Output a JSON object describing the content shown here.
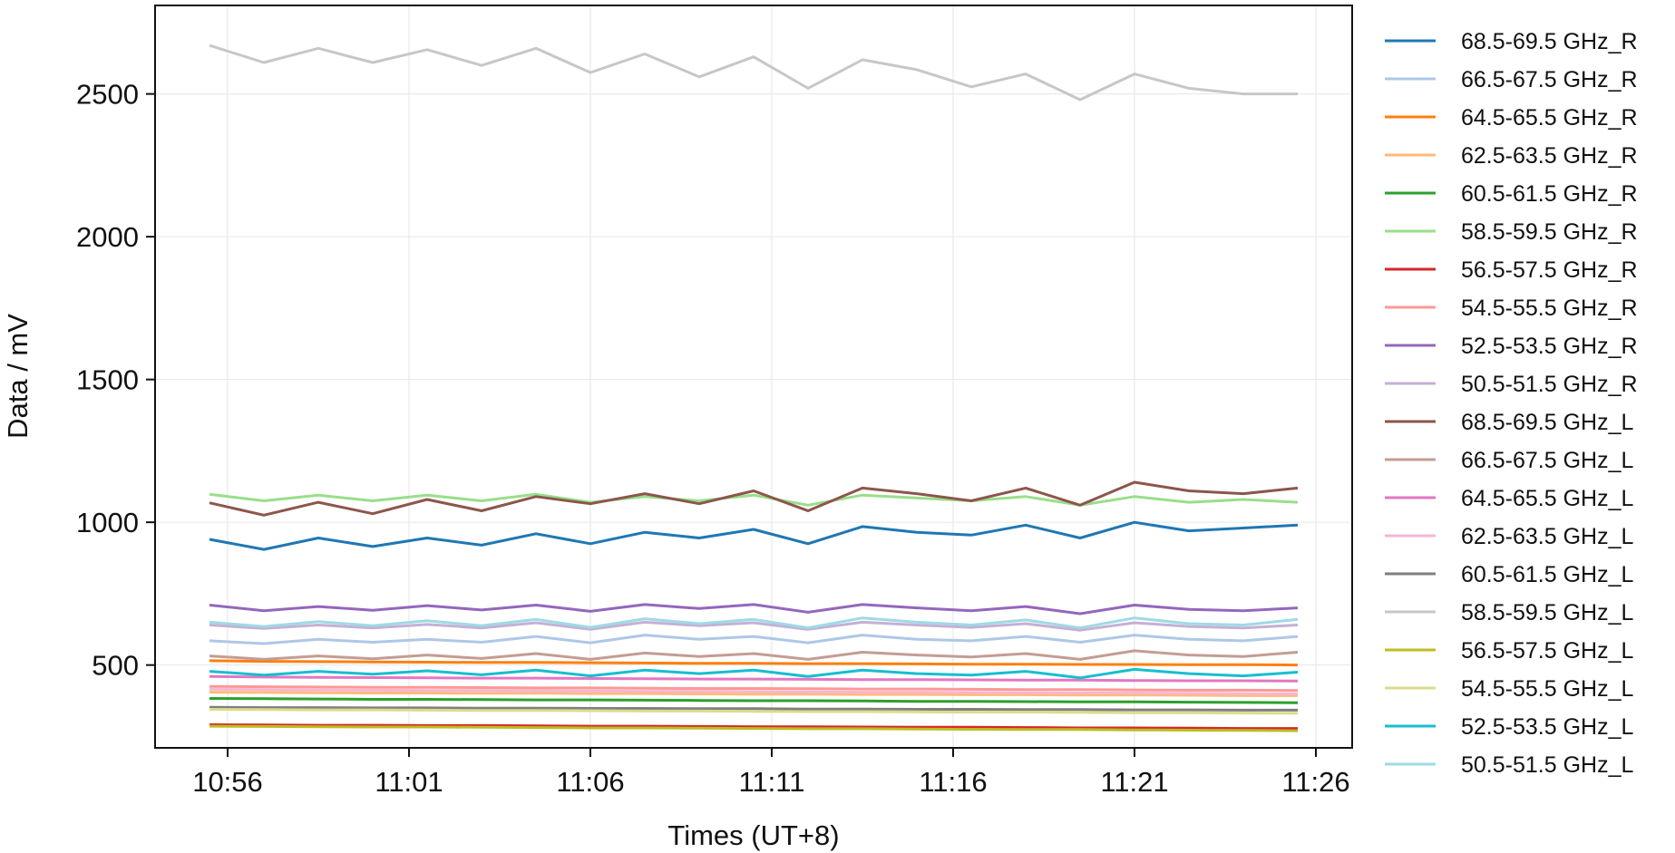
{
  "chart_data": {
    "type": "line",
    "xlabel": "Times (UT+8)",
    "ylabel": "Data / mV",
    "xticks": [
      "10:56",
      "11:01",
      "11:06",
      "11:11",
      "11:16",
      "11:21",
      "11:26"
    ],
    "yticks": [
      "500",
      "1000",
      "1500",
      "2000",
      "2500"
    ],
    "xlim": [
      "10:54",
      "11:27"
    ],
    "ylim": [
      210,
      2810
    ],
    "grid": true,
    "legend_position": "right-outside",
    "x": [
      "10:55:30",
      "10:57:00",
      "10:58:30",
      "11:00:00",
      "11:01:30",
      "11:03:00",
      "11:04:30",
      "11:06:00",
      "11:07:30",
      "11:09:00",
      "11:10:30",
      "11:12:00",
      "11:13:30",
      "11:15:00",
      "11:16:30",
      "11:18:00",
      "11:19:30",
      "11:21:00",
      "11:22:30",
      "11:24:00",
      "11:25:30"
    ],
    "series": [
      {
        "name": "68.5-69.5 GHz_R",
        "color": "#1f77b4",
        "values": [
          940,
          905,
          945,
          915,
          945,
          920,
          960,
          925,
          965,
          945,
          975,
          925,
          985,
          965,
          955,
          990,
          945,
          1000,
          970,
          980,
          990
        ]
      },
      {
        "name": "66.5-67.5 GHz_R",
        "color": "#aec7e8",
        "values": [
          585,
          575,
          590,
          580,
          590,
          580,
          600,
          578,
          605,
          590,
          600,
          578,
          605,
          590,
          585,
          600,
          580,
          605,
          590,
          585,
          600
        ]
      },
      {
        "name": "64.5-65.5 GHz_R",
        "color": "#ff7f0e",
        "values": [
          515,
          513,
          512,
          511,
          510,
          509,
          509,
          508,
          507,
          506,
          506,
          505,
          505,
          504,
          503,
          503,
          502,
          502,
          501,
          501,
          500
        ]
      },
      {
        "name": "62.5-63.5 GHz_R",
        "color": "#ffbb78",
        "values": [
          405,
          404,
          403,
          402,
          402,
          401,
          401,
          400,
          400,
          399,
          398,
          398,
          397,
          397,
          396,
          396,
          395,
          395,
          394,
          393,
          393
        ]
      },
      {
        "name": "60.5-61.5 GHz_R",
        "color": "#2ca02c",
        "values": [
          383,
          382,
          381,
          380,
          380,
          379,
          378,
          378,
          377,
          376,
          375,
          375,
          374,
          373,
          373,
          372,
          371,
          371,
          370,
          369,
          368
        ]
      },
      {
        "name": "58.5-59.5 GHz_R",
        "color": "#98df8a",
        "values": [
          1098,
          1075,
          1095,
          1075,
          1095,
          1075,
          1098,
          1070,
          1090,
          1075,
          1095,
          1060,
          1095,
          1085,
          1075,
          1090,
          1060,
          1090,
          1070,
          1080,
          1070
        ]
      },
      {
        "name": "56.5-57.5 GHz_R",
        "color": "#d62728",
        "values": [
          291,
          290,
          289,
          289,
          288,
          288,
          287,
          286,
          286,
          285,
          284,
          284,
          283,
          282,
          282,
          281,
          280,
          280,
          279,
          278,
          278
        ]
      },
      {
        "name": "54.5-55.5 GHz_R",
        "color": "#ff9896",
        "values": [
          425,
          424,
          423,
          422,
          422,
          421,
          420,
          420,
          419,
          418,
          418,
          417,
          416,
          416,
          415,
          414,
          414,
          413,
          412,
          412,
          411
        ]
      },
      {
        "name": "52.5-53.5 GHz_R",
        "color": "#9467bd",
        "values": [
          710,
          690,
          705,
          692,
          708,
          693,
          710,
          688,
          712,
          698,
          712,
          685,
          712,
          700,
          690,
          705,
          680,
          710,
          695,
          690,
          700
        ]
      },
      {
        "name": "50.5-51.5 GHz_R",
        "color": "#c5b0d5",
        "values": [
          640,
          628,
          640,
          630,
          642,
          630,
          648,
          625,
          650,
          638,
          648,
          625,
          650,
          640,
          632,
          645,
          622,
          648,
          635,
          630,
          640
        ]
      },
      {
        "name": "68.5-69.5 GHz_L",
        "color": "#8c564b",
        "values": [
          1068,
          1025,
          1070,
          1030,
          1080,
          1040,
          1090,
          1065,
          1100,
          1065,
          1110,
          1040,
          1120,
          1100,
          1075,
          1120,
          1060,
          1140,
          1110,
          1100,
          1120
        ]
      },
      {
        "name": "66.5-67.5 GHz_L",
        "color": "#c49c94",
        "values": [
          532,
          520,
          532,
          522,
          535,
          523,
          540,
          520,
          542,
          530,
          540,
          520,
          545,
          535,
          528,
          540,
          520,
          550,
          535,
          530,
          545
        ]
      },
      {
        "name": "64.5-65.5 GHz_L",
        "color": "#e377c2",
        "values": [
          460,
          458,
          457,
          456,
          455,
          454,
          454,
          453,
          452,
          451,
          451,
          450,
          449,
          449,
          448,
          447,
          447,
          446,
          445,
          445,
          444
        ]
      },
      {
        "name": "62.5-63.5 GHz_L",
        "color": "#f7b6d2",
        "values": [
          415,
          414,
          413,
          412,
          411,
          411,
          410,
          409,
          408,
          408,
          407,
          406,
          405,
          405,
          404,
          403,
          402,
          402,
          401,
          400,
          399
        ]
      },
      {
        "name": "60.5-61.5 GHz_L",
        "color": "#7f7f7f",
        "values": [
          352,
          351,
          351,
          350,
          350,
          349,
          349,
          348,
          348,
          347,
          347,
          346,
          346,
          345,
          345,
          344,
          344,
          343,
          343,
          342,
          342
        ]
      },
      {
        "name": "58.5-59.5 GHz_L",
        "color": "#c7c7c7",
        "values": [
          2670,
          2610,
          2660,
          2610,
          2655,
          2600,
          2660,
          2575,
          2640,
          2560,
          2630,
          2520,
          2620,
          2585,
          2525,
          2570,
          2480,
          2570,
          2520,
          2500,
          2500
        ]
      },
      {
        "name": "56.5-57.5 GHz_L",
        "color": "#bcbd22",
        "values": [
          286,
          285,
          284,
          283,
          283,
          282,
          281,
          280,
          280,
          279,
          278,
          277,
          277,
          276,
          275,
          274,
          274,
          273,
          272,
          271,
          270
        ]
      },
      {
        "name": "54.5-55.5 GHz_L",
        "color": "#dbdb8d",
        "values": [
          345,
          344,
          343,
          343,
          342,
          341,
          341,
          340,
          339,
          339,
          338,
          337,
          337,
          336,
          335,
          335,
          334,
          333,
          333,
          332,
          331
        ]
      },
      {
        "name": "52.5-53.5 GHz_L",
        "color": "#17becf",
        "values": [
          478,
          465,
          478,
          468,
          480,
          466,
          482,
          462,
          482,
          470,
          482,
          460,
          482,
          470,
          465,
          478,
          455,
          485,
          470,
          462,
          475
        ]
      },
      {
        "name": "50.5-51.5 GHz_L",
        "color": "#9edae5",
        "values": [
          650,
          635,
          652,
          638,
          655,
          638,
          660,
          632,
          662,
          645,
          660,
          630,
          665,
          650,
          640,
          658,
          630,
          665,
          645,
          640,
          660
        ]
      }
    ]
  }
}
